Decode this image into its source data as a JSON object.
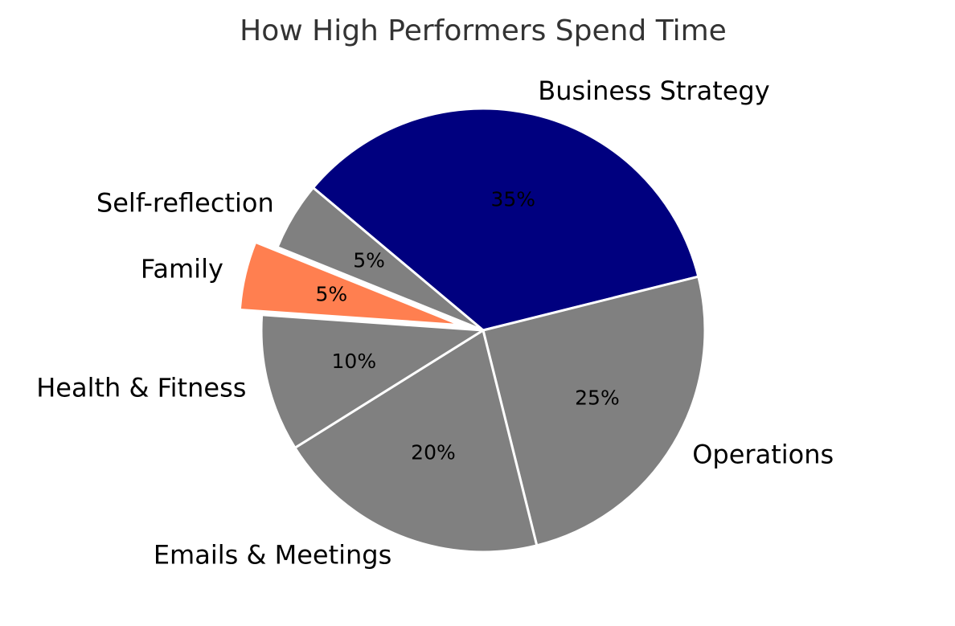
{
  "chart_data": {
    "type": "pie",
    "title": "How High Performers Spend Time",
    "slices": [
      {
        "label": "Business Strategy",
        "value": 35,
        "pct_label": "35%",
        "color": "#00007f",
        "explode": false
      },
      {
        "label": "Operations",
        "value": 25,
        "pct_label": "25%",
        "color": "#808080",
        "explode": false
      },
      {
        "label": "Emails & Meetings",
        "value": 20,
        "pct_label": "20%",
        "color": "#808080",
        "explode": false
      },
      {
        "label": "Health & Fitness",
        "value": 10,
        "pct_label": "10%",
        "color": "#808080",
        "explode": false
      },
      {
        "label": "Family",
        "value": 5,
        "pct_label": "5%",
        "color": "#ff7f50",
        "explode": true
      },
      {
        "label": "Self-reflection",
        "value": 5,
        "pct_label": "5%",
        "color": "#808080",
        "explode": false
      }
    ],
    "legend": "none"
  }
}
